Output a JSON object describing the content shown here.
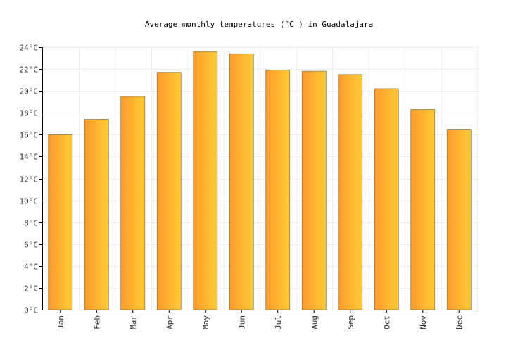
{
  "chart_data": {
    "type": "bar",
    "title": "Average monthly temperatures (°C ) in Guadalajara",
    "xlabel": "",
    "ylabel": "",
    "categories": [
      "Jan",
      "Feb",
      "Mar",
      "Apr",
      "May",
      "Jun",
      "Jul",
      "Aug",
      "Sep",
      "Oct",
      "Nov",
      "Dec"
    ],
    "values": [
      16.0,
      17.4,
      19.5,
      21.7,
      23.6,
      23.4,
      21.9,
      21.8,
      21.5,
      20.2,
      18.3,
      16.5
    ],
    "ylim": [
      0,
      24
    ],
    "y_ticks": [
      "0°C",
      "2°C",
      "4°C",
      "6°C",
      "8°C",
      "10°C",
      "12°C",
      "14°C",
      "16°C",
      "18°C",
      "20°C",
      "22°C",
      "24°C"
    ],
    "grid": true,
    "legend": "none",
    "colors": {
      "bar_start": "#ff9a2e",
      "bar_end": "#ffcc33",
      "bar_edge": "#8a7a55"
    }
  }
}
